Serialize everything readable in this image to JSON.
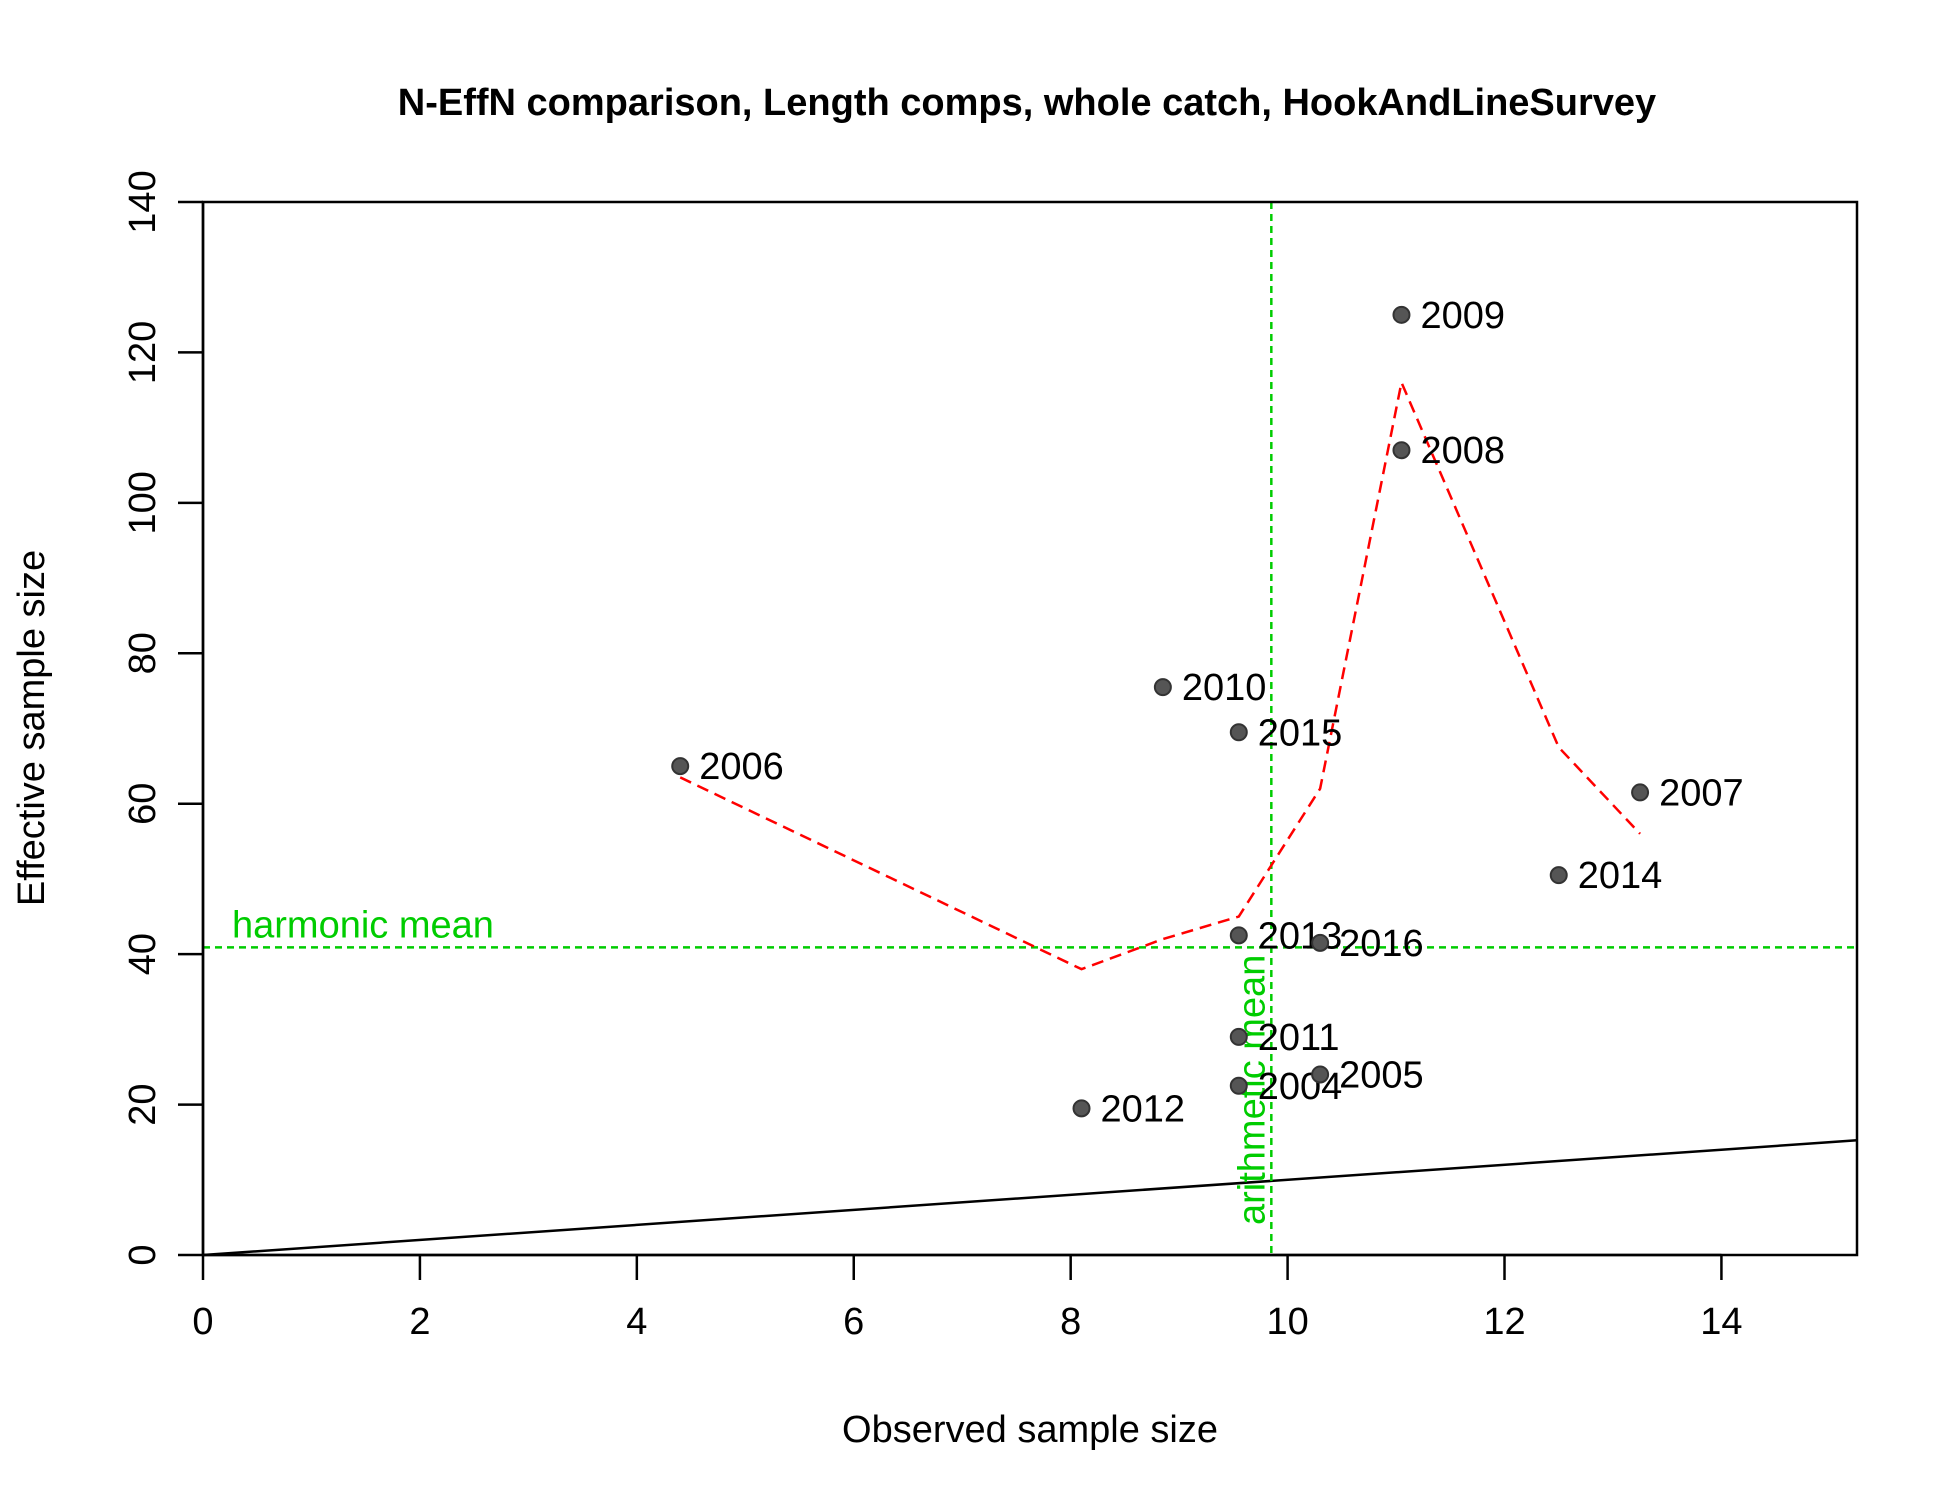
{
  "chart_data": {
    "type": "scatter",
    "title": "N-EffN comparison, Length comps, whole catch, HookAndLineSurvey",
    "xlabel": "Observed sample size",
    "ylabel": "Effective sample size",
    "xlim": [
      0,
      15.25
    ],
    "ylim": [
      0,
      140
    ],
    "xticks": [
      0,
      2,
      4,
      6,
      8,
      10,
      12,
      14
    ],
    "yticks": [
      0,
      20,
      40,
      60,
      80,
      100,
      120,
      140
    ],
    "grid": false,
    "legend": "none",
    "points": [
      {
        "label": "2004",
        "x": 9.55,
        "y": 22.5
      },
      {
        "label": "2005",
        "x": 10.3,
        "y": 24.0
      },
      {
        "label": "2006",
        "x": 4.4,
        "y": 65.0
      },
      {
        "label": "2007",
        "x": 13.25,
        "y": 61.5
      },
      {
        "label": "2008",
        "x": 11.05,
        "y": 107.0
      },
      {
        "label": "2009",
        "x": 11.05,
        "y": 125.0
      },
      {
        "label": "2010",
        "x": 8.85,
        "y": 75.5
      },
      {
        "label": "2011",
        "x": 9.55,
        "y": 29.0
      },
      {
        "label": "2012",
        "x": 8.1,
        "y": 19.5
      },
      {
        "label": "2013",
        "x": 9.55,
        "y": 42.5
      },
      {
        "label": "2014",
        "x": 12.5,
        "y": 50.5
      },
      {
        "label": "2015",
        "x": 9.55,
        "y": 69.5
      },
      {
        "label": "2016",
        "x": 10.3,
        "y": 41.5
      }
    ],
    "smoother": {
      "x": [
        4.4,
        8.1,
        8.85,
        9.55,
        10.3,
        11.05,
        12.5,
        13.25
      ],
      "y": [
        63.5,
        38.0,
        42.0,
        45.0,
        62.0,
        116.0,
        67.5,
        56.0
      ]
    },
    "one_to_one_line": {
      "x": [
        0,
        15.25
      ],
      "y": [
        0,
        15.25
      ]
    },
    "harmonic_mean": {
      "value": 40.9,
      "label": "harmonic mean"
    },
    "arithmetic_mean": {
      "value": 9.85,
      "label": "arithmetic mean"
    },
    "colors": {
      "points": "#555555",
      "smoother": "#ff0000",
      "means": "#00cc00",
      "identity": "#000000"
    }
  }
}
